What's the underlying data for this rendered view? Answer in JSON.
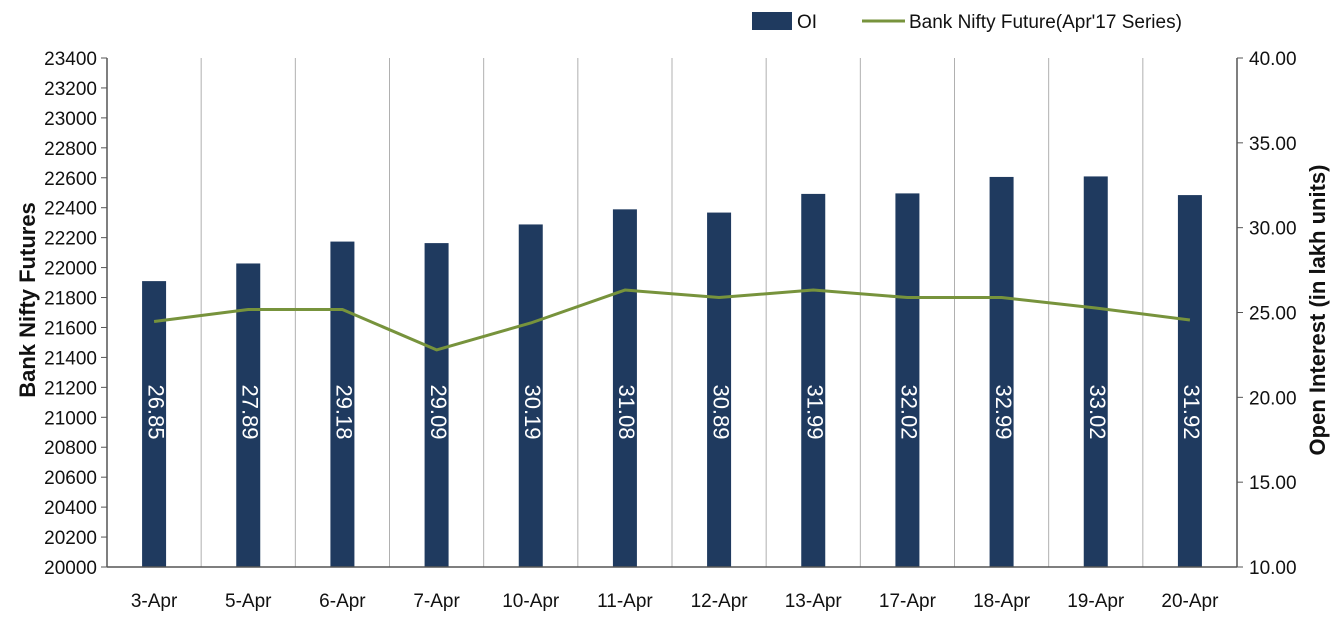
{
  "chart_data": {
    "type": "bar",
    "categories": [
      "3-Apr",
      "5-Apr",
      "6-Apr",
      "7-Apr",
      "10-Apr",
      "11-Apr",
      "12-Apr",
      "13-Apr",
      "17-Apr",
      "18-Apr",
      "19-Apr",
      "20-Apr"
    ],
    "series": [
      {
        "name": "OI",
        "type": "bar",
        "axis": "right",
        "values": [
          26.85,
          27.89,
          29.18,
          29.09,
          30.19,
          31.08,
          30.89,
          31.99,
          32.02,
          32.99,
          33.02,
          31.92
        ],
        "value_labels": [
          "26.85",
          "27.89",
          "29.18",
          "29.09",
          "30.19",
          "31.08",
          "30.89",
          "31.99",
          "32.02",
          "32.99",
          "33.02",
          "31.92"
        ],
        "color": "#1f3a5f"
      },
      {
        "name": "Bank Nifty Future(Apr'17 Series)",
        "type": "line",
        "axis": "left",
        "values": [
          21640,
          21720,
          21720,
          21450,
          21630,
          21850,
          21800,
          21850,
          21800,
          21800,
          21730,
          21650
        ],
        "color": "#77933c"
      }
    ],
    "ylabel": "Bank Nifty Futures",
    "y2label": "Open Interest (in lakh units)",
    "ylim": [
      20000,
      23400
    ],
    "y2lim": [
      10,
      40
    ],
    "yticks": [
      "20000",
      "20200",
      "20400",
      "20600",
      "20800",
      "21000",
      "21200",
      "21400",
      "21600",
      "21800",
      "22000",
      "22200",
      "22400",
      "22600",
      "22800",
      "23000",
      "23200",
      "23400"
    ],
    "y2ticks": [
      "10.00",
      "15.00",
      "20.00",
      "25.00",
      "30.00",
      "35.00",
      "40.00"
    ],
    "grid": "vertical",
    "legend": "top-right"
  }
}
